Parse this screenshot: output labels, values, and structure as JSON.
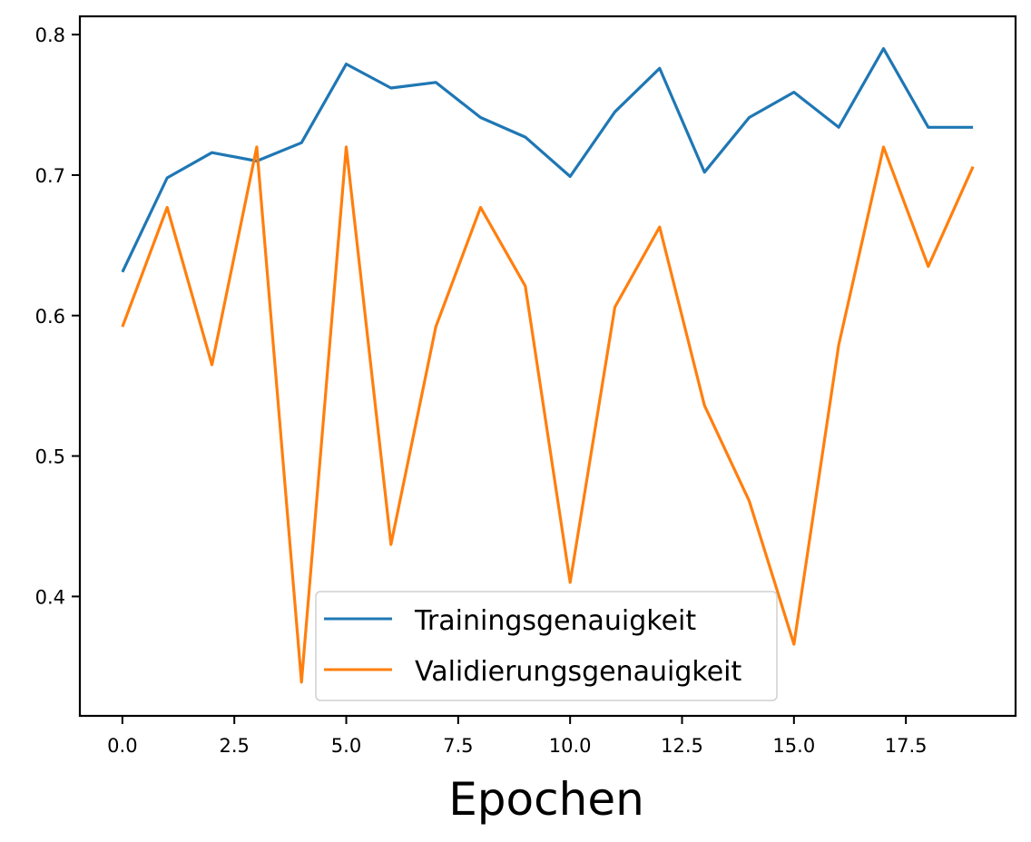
{
  "chart_data": {
    "type": "line",
    "title": "",
    "xlabel": "Epochen",
    "ylabel": "",
    "x": [
      0,
      1,
      2,
      3,
      4,
      5,
      6,
      7,
      8,
      9,
      10,
      11,
      12,
      13,
      14,
      15,
      16,
      17,
      18,
      19
    ],
    "series": [
      {
        "name": "Trainingsgenauigkeit",
        "color": "#1f77b4",
        "values": [
          0.631,
          0.698,
          0.716,
          0.71,
          0.723,
          0.779,
          0.762,
          0.766,
          0.741,
          0.727,
          0.699,
          0.745,
          0.776,
          0.702,
          0.741,
          0.759,
          0.734,
          0.79,
          0.734,
          0.734
        ]
      },
      {
        "name": "Validierungsgenauigkeit",
        "color": "#ff7f0e",
        "values": [
          0.592,
          0.677,
          0.565,
          0.72,
          0.339,
          0.72,
          0.437,
          0.592,
          0.677,
          0.621,
          0.41,
          0.606,
          0.663,
          0.536,
          0.468,
          0.366,
          0.579,
          0.72,
          0.635,
          0.706
        ]
      }
    ],
    "xticks": [
      0.0,
      2.5,
      5.0,
      7.5,
      10.0,
      12.5,
      15.0,
      17.5
    ],
    "xtick_labels": [
      "0.0",
      "2.5",
      "5.0",
      "7.5",
      "10.0",
      "12.5",
      "15.0",
      "17.5"
    ],
    "yticks": [
      0.4,
      0.5,
      0.6,
      0.7,
      0.8
    ],
    "ytick_labels": [
      "0.4",
      "0.5",
      "0.6",
      "0.7",
      "0.8"
    ],
    "xlim": [
      -0.95,
      19.95
    ],
    "ylim": [
      0.315,
      0.813
    ],
    "grid": false,
    "legend_position": "lower center"
  }
}
